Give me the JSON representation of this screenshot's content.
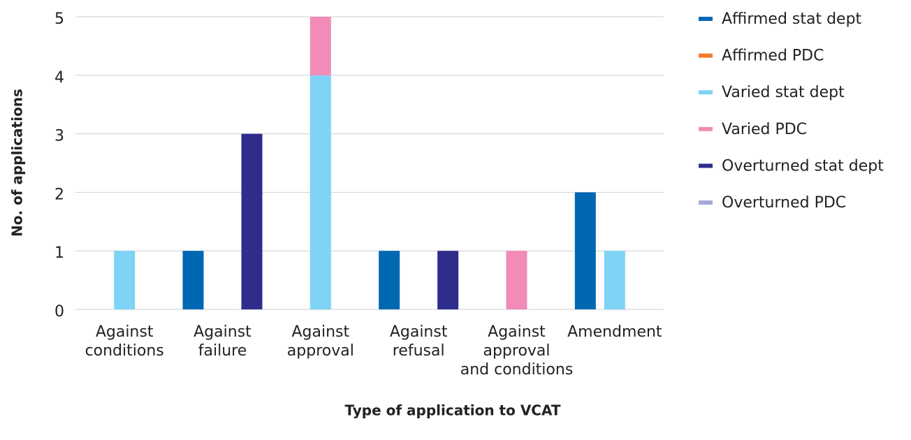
{
  "chart_data": {
    "type": "bar",
    "y_label": "No. of applications",
    "x_label": "Type of application to VCAT",
    "categories": [
      "Against\nconditions",
      "Against\nfailure",
      "Against\napproval",
      "Against\nrefusal",
      "Against\napproval\nand conditions",
      "Amendment"
    ],
    "series": [
      {
        "name": "Affirmed stat dept",
        "color": "#0068b3",
        "values": [
          0,
          1,
          0,
          1,
          0,
          2
        ]
      },
      {
        "name": "Affirmed PDC",
        "color": "#f47a2a",
        "values": [
          0,
          0,
          0,
          0,
          0,
          0
        ]
      },
      {
        "name": "Varied stat dept",
        "color": "#7fd3f5",
        "values": [
          1,
          0,
          4,
          0,
          0,
          1
        ]
      },
      {
        "name": "Varied PDC",
        "color": "#f18bb7",
        "values": [
          0,
          0,
          1,
          0,
          1,
          0
        ]
      },
      {
        "name": "Overturned stat dept",
        "color": "#2e2d8c",
        "values": [
          0,
          3,
          0,
          1,
          0,
          0
        ]
      },
      {
        "name": "Overturned PDC",
        "color": "#a5a8d8",
        "values": [
          0,
          0,
          0,
          0,
          0,
          0
        ]
      }
    ],
    "ylim": [
      0,
      5
    ],
    "yticks": [
      0,
      1,
      2,
      3,
      4,
      5
    ],
    "grid": true,
    "legend": "right"
  }
}
